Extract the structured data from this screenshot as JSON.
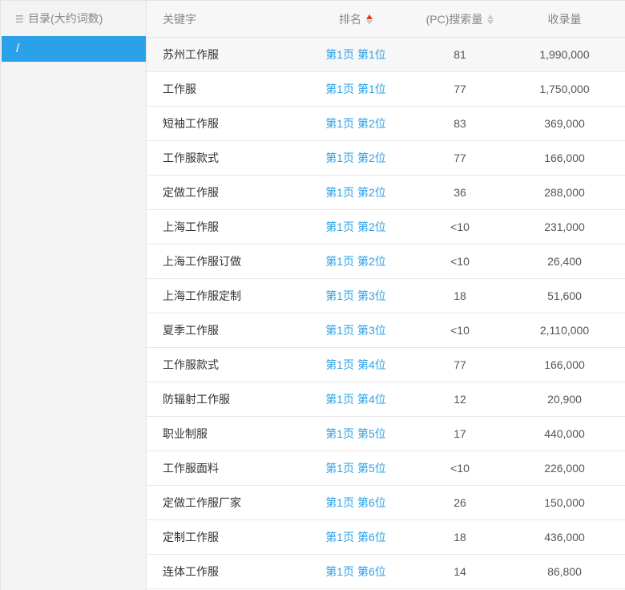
{
  "sidebar": {
    "title": "目录(大约词数)",
    "items": [
      {
        "label": "/"
      }
    ]
  },
  "table": {
    "headers": {
      "keyword": "关键字",
      "rank": "排名",
      "pc_volume": "(PC)搜索量",
      "indexed": "收录量"
    },
    "sort": {
      "column": "rank",
      "direction": "asc"
    },
    "rows": [
      {
        "keyword": "苏州工作服",
        "rank": "第1页 第1位",
        "pc_volume": "81",
        "indexed": "1,990,000"
      },
      {
        "keyword": "工作服",
        "rank": "第1页 第1位",
        "pc_volume": "77",
        "indexed": "1,750,000"
      },
      {
        "keyword": "短袖工作服",
        "rank": "第1页 第2位",
        "pc_volume": "83",
        "indexed": "369,000"
      },
      {
        "keyword": "工作服款式",
        "rank": "第1页 第2位",
        "pc_volume": "77",
        "indexed": "166,000"
      },
      {
        "keyword": "定做工作服",
        "rank": "第1页 第2位",
        "pc_volume": "36",
        "indexed": "288,000"
      },
      {
        "keyword": "上海工作服",
        "rank": "第1页 第2位",
        "pc_volume": "<10",
        "indexed": "231,000"
      },
      {
        "keyword": "上海工作服订做",
        "rank": "第1页 第2位",
        "pc_volume": "<10",
        "indexed": "26,400"
      },
      {
        "keyword": "上海工作服定制",
        "rank": "第1页 第3位",
        "pc_volume": "18",
        "indexed": "51,600"
      },
      {
        "keyword": "夏季工作服",
        "rank": "第1页 第3位",
        "pc_volume": "<10",
        "indexed": "2,110,000"
      },
      {
        "keyword": "工作服款式",
        "rank": "第1页 第4位",
        "pc_volume": "77",
        "indexed": "166,000"
      },
      {
        "keyword": "防辐射工作服",
        "rank": "第1页 第4位",
        "pc_volume": "12",
        "indexed": "20,900"
      },
      {
        "keyword": "职业制服",
        "rank": "第1页 第5位",
        "pc_volume": "17",
        "indexed": "440,000"
      },
      {
        "keyword": "工作服面料",
        "rank": "第1页 第5位",
        "pc_volume": "<10",
        "indexed": "226,000"
      },
      {
        "keyword": "定做工作服厂家",
        "rank": "第1页 第6位",
        "pc_volume": "26",
        "indexed": "150,000"
      },
      {
        "keyword": "定制工作服",
        "rank": "第1页 第6位",
        "pc_volume": "18",
        "indexed": "436,000"
      },
      {
        "keyword": "连体工作服",
        "rank": "第1页 第6位",
        "pc_volume": "14",
        "indexed": "86,800"
      }
    ]
  },
  "colors": {
    "accent": "#2aa1e8",
    "sort_active": "#e8341c"
  }
}
